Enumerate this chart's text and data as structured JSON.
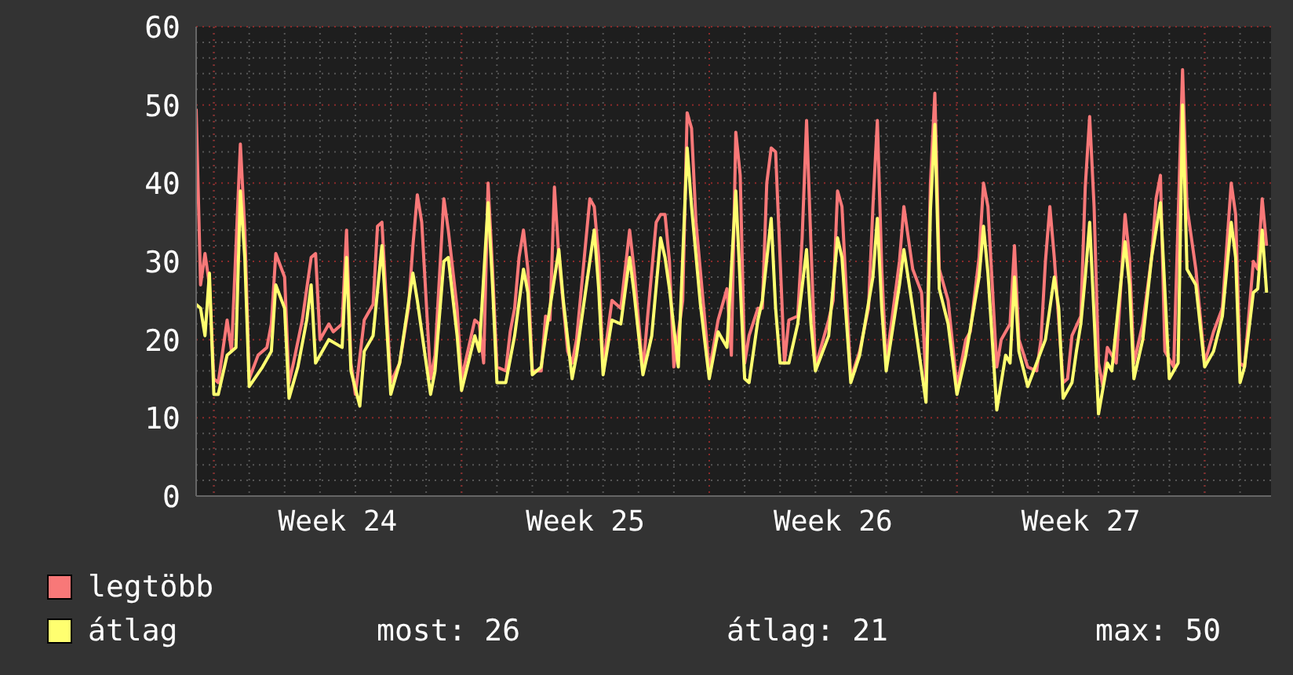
{
  "chart_data": {
    "type": "line",
    "ylim": [
      0,
      60
    ],
    "yticks": [
      0,
      10,
      20,
      30,
      40,
      50,
      60
    ],
    "categories": [
      null,
      null,
      null,
      null,
      null,
      null,
      null,
      null,
      null,
      null,
      null,
      null,
      null,
      null,
      null,
      null,
      null,
      null,
      null,
      null,
      null,
      null,
      null,
      null,
      null,
      null,
      null,
      null,
      null,
      null,
      null,
      null,
      "Week 24",
      null,
      null,
      null,
      null,
      null,
      null,
      null,
      null,
      null,
      null,
      null,
      null,
      null,
      null,
      null,
      null,
      null,
      null,
      null,
      null,
      null,
      null,
      null,
      null,
      null,
      null,
      null,
      null,
      null,
      null,
      null,
      null,
      null,
      null,
      null,
      null,
      null,
      null,
      null,
      null,
      null,
      null,
      null,
      null,
      null,
      null,
      null,
      null,
      null,
      null,
      null,
      null,
      null,
      null,
      null,
      "Week 25",
      null,
      null,
      null,
      null,
      null,
      null,
      null,
      null,
      null,
      null,
      null,
      null,
      null,
      null,
      null,
      null,
      null,
      null,
      null,
      null,
      null,
      null,
      null,
      null,
      null,
      null,
      null,
      null,
      null,
      null,
      null,
      null,
      null,
      null,
      null,
      null,
      null,
      null,
      null,
      null,
      null,
      null,
      null,
      null,
      null,
      null,
      null,
      null,
      null,
      null,
      null,
      null,
      null,
      null,
      null,
      "Week 26",
      null,
      null,
      null,
      null,
      null,
      null,
      null,
      null,
      null,
      null,
      null,
      null,
      null,
      null,
      null,
      null,
      null,
      null,
      null,
      null,
      null,
      null,
      null,
      null,
      null,
      null,
      null,
      null,
      null,
      null,
      null,
      null,
      null,
      null,
      null,
      null,
      null,
      null,
      null,
      null,
      null,
      null,
      null,
      null,
      null,
      null,
      null,
      null,
      null,
      null,
      null,
      null,
      null,
      null,
      null,
      "Week 27",
      null,
      null,
      null,
      null,
      null,
      null,
      null,
      null,
      null,
      null,
      null,
      null,
      null,
      null,
      null,
      null,
      null,
      null,
      null,
      null,
      null,
      null,
      null,
      null,
      null,
      null,
      null,
      null,
      null,
      null,
      null,
      null,
      null,
      null,
      null,
      null,
      null,
      null,
      null,
      null,
      null,
      null,
      null
    ],
    "grid": true,
    "legend": "bottom left",
    "marker": "none",
    "line_style": "solid",
    "annotations": [
      "most: 26",
      "átlag: 21",
      "max: 50"
    ],
    "series": [
      {
        "name": "legtöbb",
        "color": "#f87878",
        "values": [
          49.5,
          27,
          31,
          27,
          15,
          14.5,
          null,
          22.5,
          18.5,
          null,
          45,
          34,
          15,
          null,
          18,
          null,
          19,
          22,
          31,
          null,
          28,
          14.5,
          17,
          null,
          22.5,
          null,
          30.5,
          31,
          20,
          null,
          22,
          21,
          null,
          22,
          34,
          17,
          13,
          null,
          22.5,
          null,
          24.5,
          34.5,
          35,
          null,
          14.5,
          null,
          17,
          null,
          24,
          32,
          38.5,
          35,
          null,
          15,
          18,
          null,
          38,
          34,
          null,
          24,
          15,
          null,
          20,
          22.5,
          22,
          17,
          40,
          29,
          16.5,
          null,
          16,
          21,
          24,
          30.5,
          34,
          29,
          16,
          null,
          16,
          23,
          22.5,
          39.5,
          30.5,
          null,
          18.5,
          17,
          20,
          null,
          null,
          38,
          37,
          30.5,
          16.5,
          null,
          25,
          null,
          24,
          null,
          34,
          29,
          null,
          16,
          22.5,
          null,
          35,
          36,
          36,
          30,
          16.5,
          null,
          25,
          49,
          47,
          35,
          null,
          22.5,
          16,
          null,
          22.5,
          null,
          26.5,
          18,
          46.5,
          41,
          17,
          20.5,
          null,
          24,
          24,
          40,
          44.5,
          44,
          30.5,
          17,
          22.5,
          null,
          23,
          33,
          48,
          32,
          16.5,
          null,
          null,
          22.5,
          25,
          39,
          37,
          null,
          15,
          null,
          18.5,
          null,
          24,
          37,
          48,
          29,
          17,
          null,
          null,
          30,
          37,
          null,
          29,
          null,
          26,
          14.5,
          40,
          51.5,
          29,
          null,
          25,
          null,
          14,
          null,
          20,
          21,
          null,
          30.5,
          40,
          37,
          null,
          16.5,
          20,
          null,
          22,
          32,
          20,
          null,
          16.5,
          null,
          16,
          20,
          30,
          37,
          30.5,
          null,
          14.5,
          15,
          20.5,
          null,
          23,
          39.5,
          48.5,
          37,
          17,
          14,
          19,
          null,
          17,
          null,
          36,
          30.5,
          17,
          null,
          22,
          null,
          30.5,
          38,
          41,
          18.5,
          null,
          16.5,
          null,
          54.5,
          37,
          null,
          29,
          null,
          17,
          null,
          21,
          null,
          24,
          null,
          40,
          36,
          17,
          16.5,
          null,
          30,
          29,
          38,
          32,
          null
        ]
      },
      {
        "name": "átlag",
        "color": "#ffff70",
        "values": [
          24.5,
          24,
          20.5,
          28.5,
          13,
          13,
          null,
          18,
          null,
          19,
          39,
          30.5,
          14,
          null,
          null,
          16.5,
          null,
          18.5,
          27,
          null,
          24,
          12.5,
          null,
          16.5,
          null,
          22.5,
          27,
          17,
          null,
          null,
          20,
          null,
          null,
          19,
          30.5,
          16,
          null,
          11.5,
          18.5,
          null,
          20.5,
          null,
          32,
          null,
          13,
          null,
          17,
          null,
          null,
          28.5,
          25,
          null,
          null,
          13,
          16,
          null,
          30,
          30.5,
          null,
          20.5,
          13.5,
          null,
          null,
          20.5,
          18.5,
          null,
          37.5,
          27,
          14.5,
          null,
          14.5,
          null,
          20.5,
          null,
          29,
          26,
          15.5,
          null,
          16.5,
          20.5,
          null,
          null,
          31.5,
          25,
          null,
          15,
          18,
          null,
          null,
          null,
          34,
          26.5,
          15.5,
          null,
          22.5,
          null,
          22,
          null,
          30.5,
          26,
          null,
          15.5,
          null,
          20.5,
          null,
          33,
          30.5,
          26.5,
          null,
          16.5,
          30.5,
          44.5,
          37,
          null,
          24.5,
          null,
          15,
          null,
          21,
          null,
          19,
          null,
          39,
          null,
          15,
          14.5,
          null,
          22.5,
          25,
          null,
          35.5,
          24,
          17,
          null,
          17,
          null,
          22,
          null,
          31.5,
          22,
          16,
          null,
          null,
          20.5,
          null,
          33,
          30.5,
          null,
          14.5,
          null,
          18,
          null,
          null,
          28,
          35.5,
          24,
          16,
          null,
          null,
          27,
          31.5,
          null,
          24,
          null,
          null,
          12,
          36.5,
          47.5,
          26.5,
          null,
          22,
          null,
          13,
          null,
          18,
          null,
          null,
          28,
          34.5,
          28.5,
          null,
          11,
          null,
          18,
          17,
          28,
          18.5,
          null,
          14,
          null,
          null,
          18.5,
          20,
          null,
          28,
          24,
          12.5,
          null,
          14.5,
          18.5,
          22,
          28,
          35,
          23,
          10.5,
          null,
          17,
          16,
          null,
          null,
          32.5,
          27,
          15,
          null,
          20,
          null,
          30.5,
          null,
          37.5,
          null,
          15,
          null,
          17,
          50,
          29,
          null,
          27,
          null,
          16.5,
          null,
          18.5,
          null,
          23,
          null,
          35,
          30.5,
          14.5,
          16.5,
          null,
          26,
          26.5,
          34,
          26,
          null
        ]
      }
    ]
  }
}
